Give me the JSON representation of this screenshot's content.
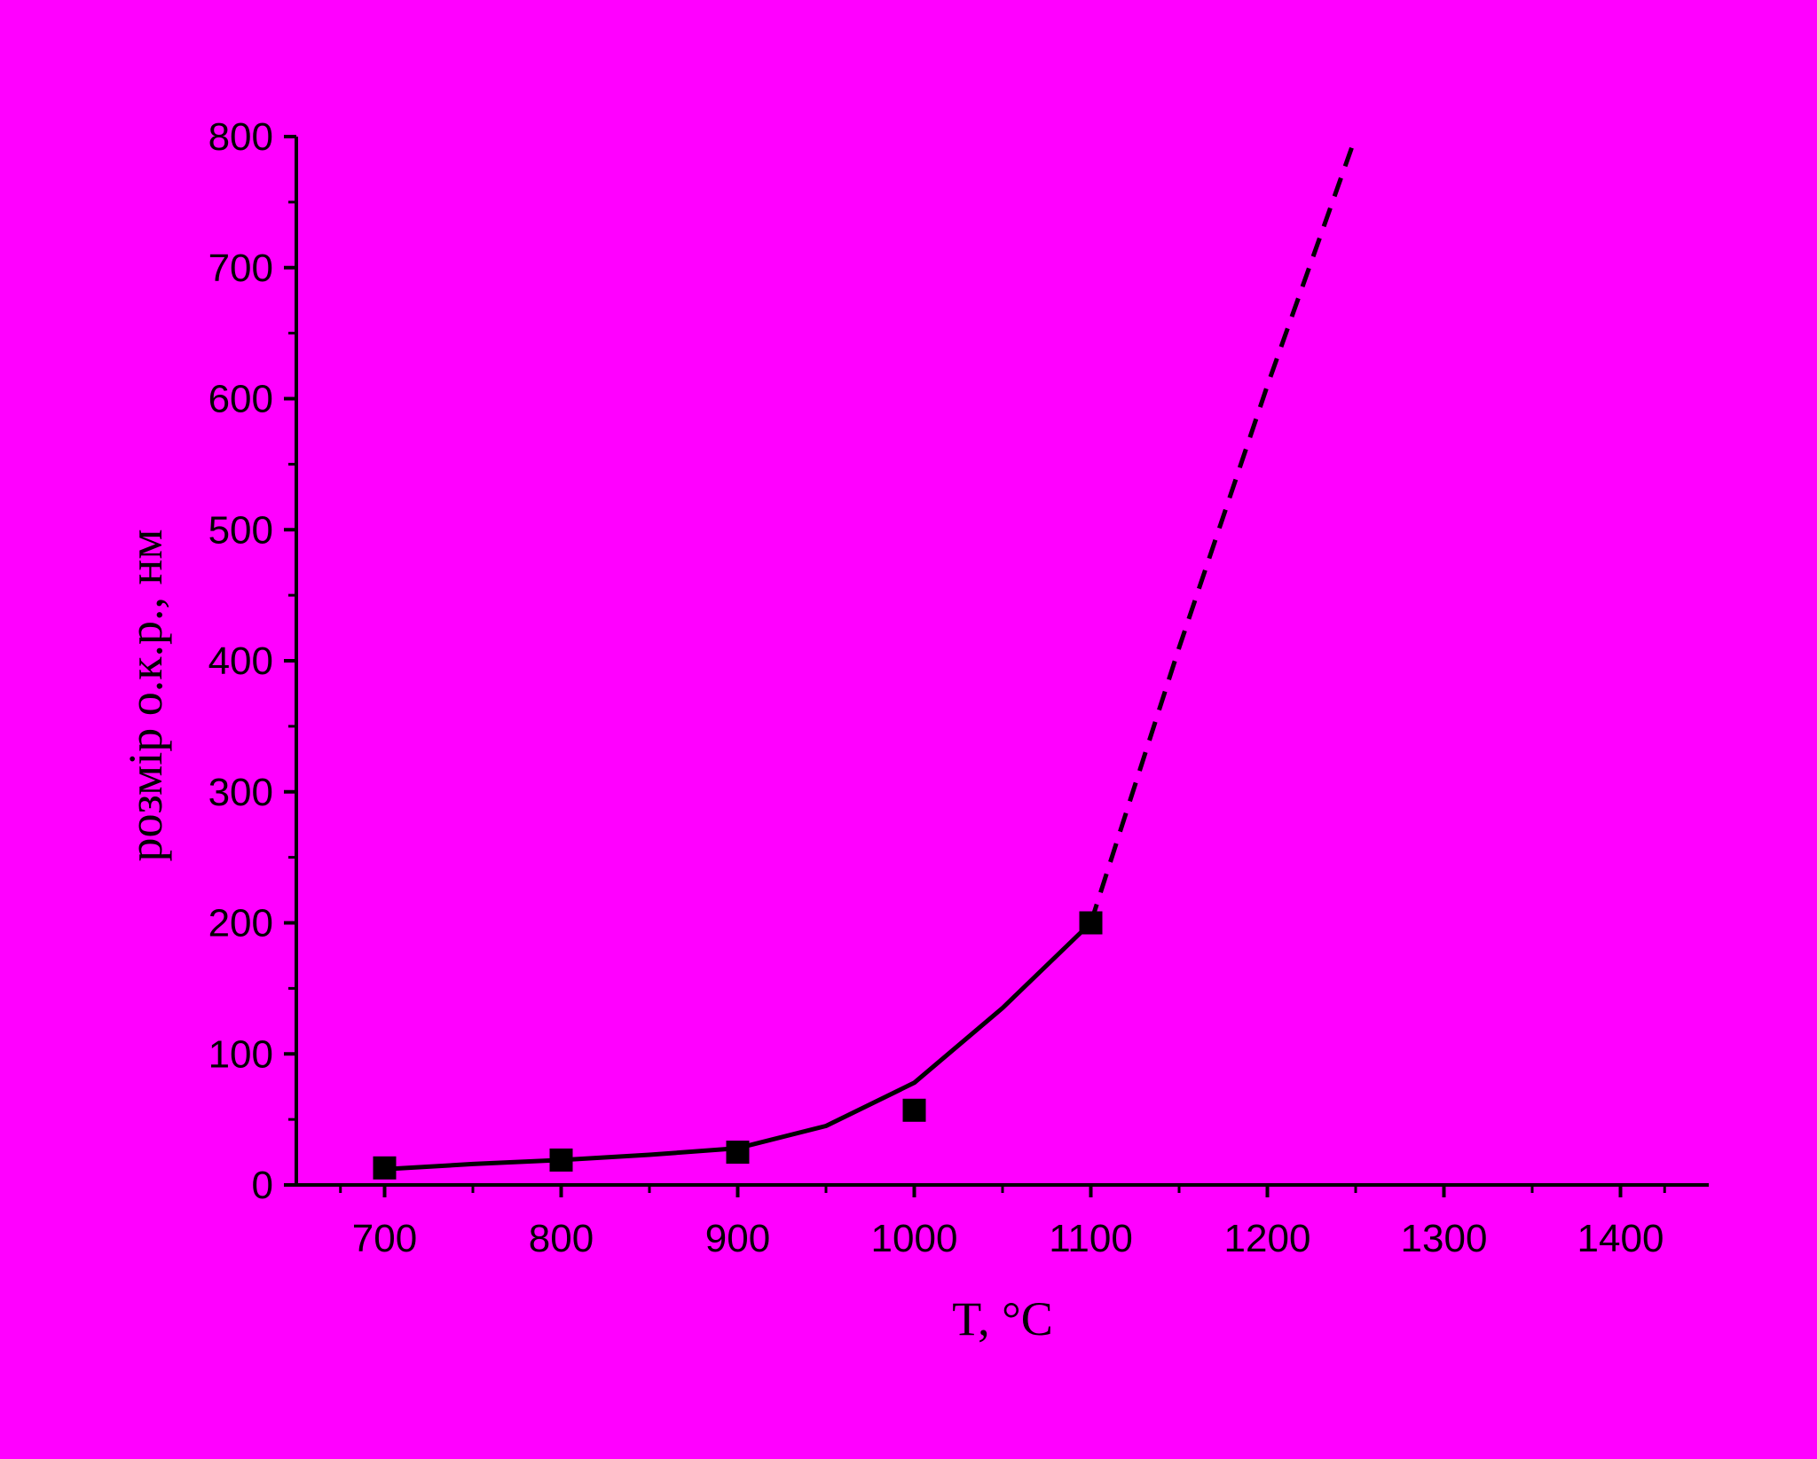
{
  "chart_data": {
    "type": "scatter",
    "x_label": "T, °C",
    "y_label": "розмір о.к.р., нм",
    "background": "#ff00ff",
    "color": "#000000",
    "xlim": [
      650,
      1450
    ],
    "xticks": [
      700,
      800,
      900,
      1000,
      1100,
      1200,
      1300,
      1400
    ],
    "ylim": [
      0,
      800
    ],
    "yticks": [
      0,
      100,
      200,
      300,
      400,
      500,
      600,
      700,
      800
    ],
    "series": [
      {
        "style": "markers",
        "x": [
          700,
          800,
          900,
          1000,
          1100
        ],
        "values": [
          13,
          19,
          25,
          57,
          200
        ]
      },
      {
        "style": "solid",
        "x": [
          700,
          750,
          800,
          850,
          900,
          950,
          1000,
          1050,
          1100
        ],
        "values": [
          12,
          16,
          19,
          23,
          28,
          45,
          78,
          135,
          200
        ]
      },
      {
        "style": "dashed",
        "x": [
          1100,
          1150,
          1200,
          1250
        ],
        "values": [
          200,
          410,
          610,
          800
        ]
      }
    ]
  }
}
